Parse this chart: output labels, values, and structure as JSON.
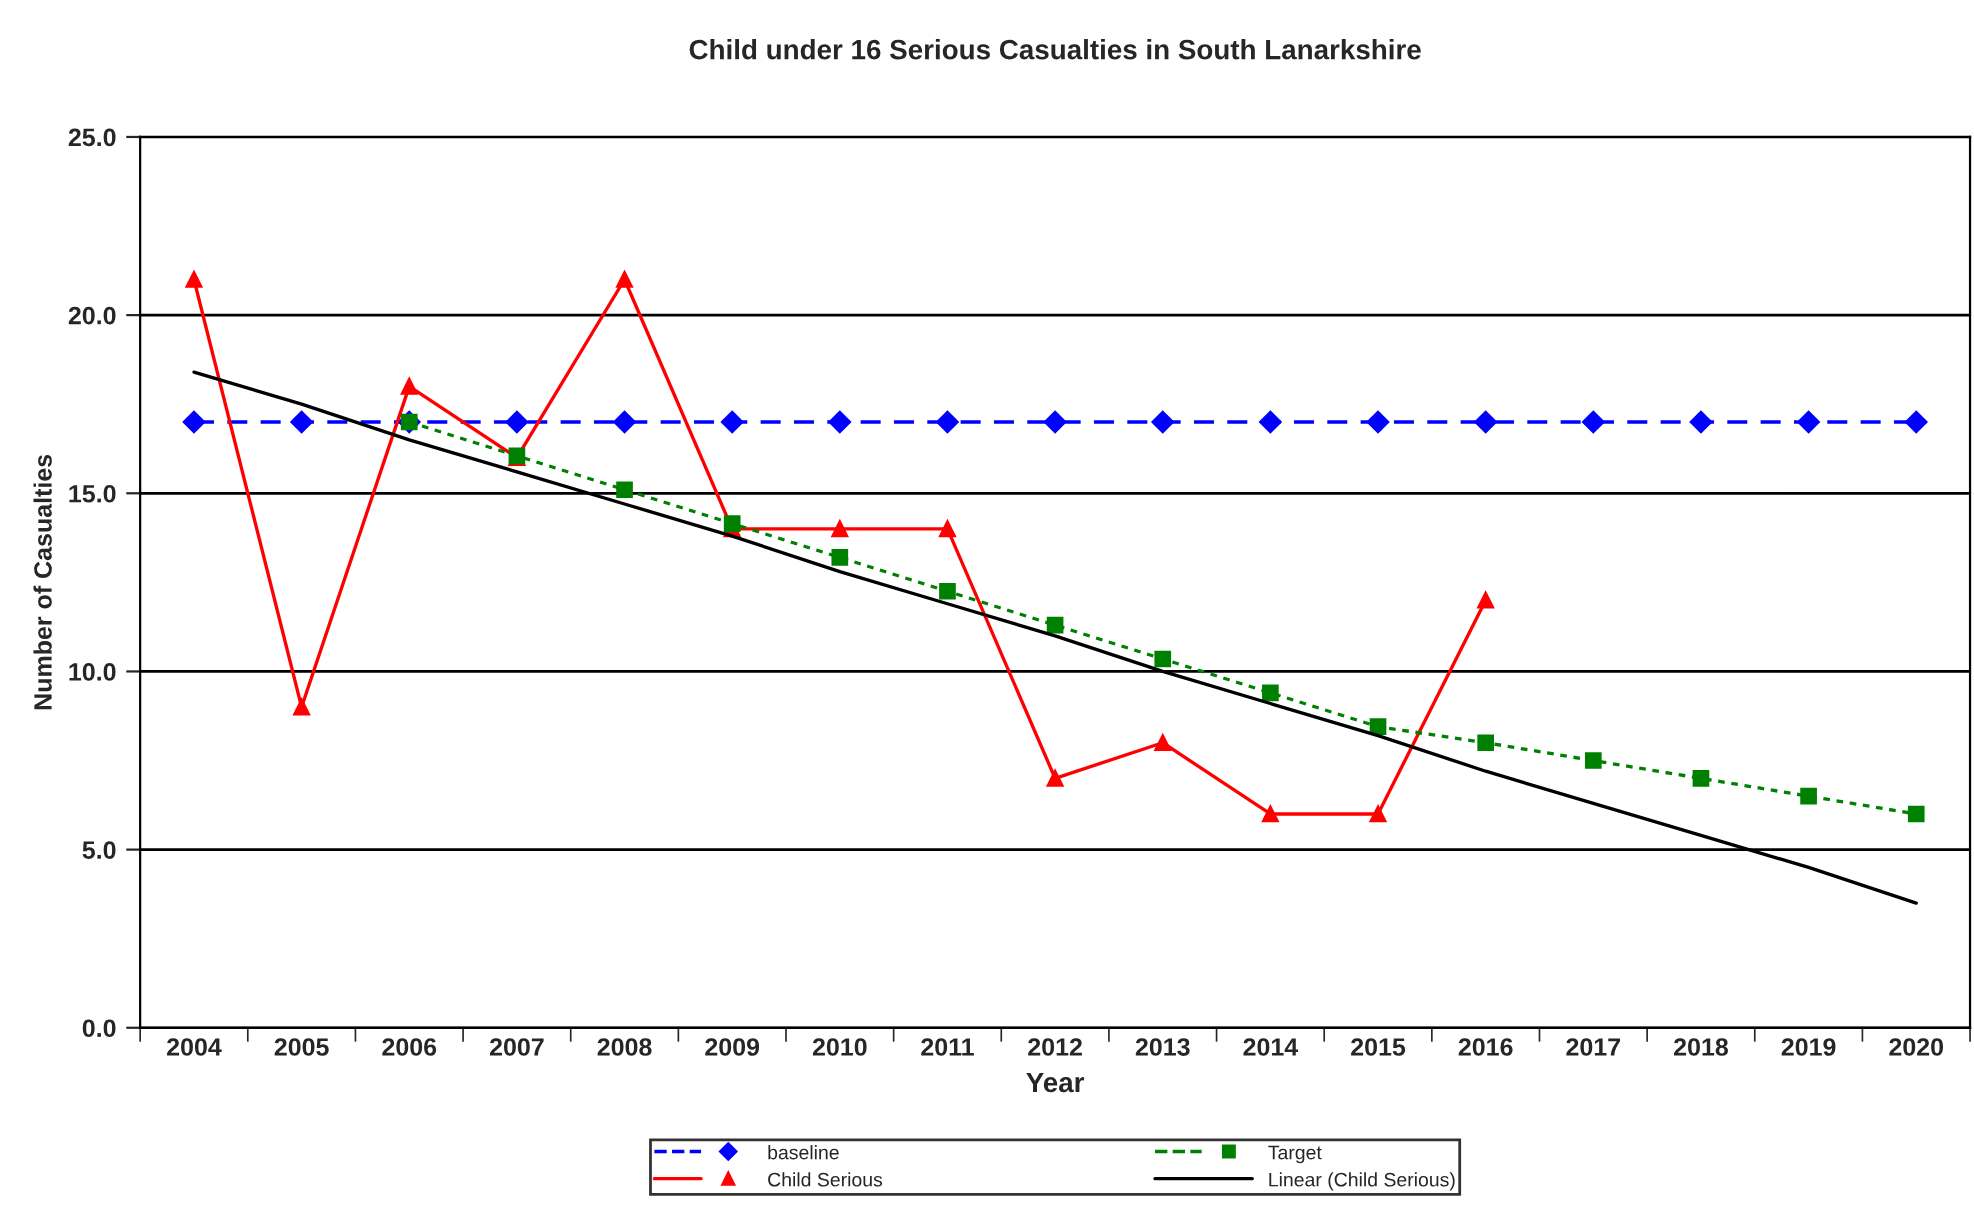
{
  "chart_data": {
    "type": "line",
    "title": "Child under 16 Serious Casualties in South Lanarkshire",
    "xlabel": "Year",
    "ylabel": "Number of Casualties",
    "categories": [
      "2004",
      "2005",
      "2006",
      "2007",
      "2008",
      "2009",
      "2010",
      "2011",
      "2012",
      "2013",
      "2014",
      "2015",
      "2016",
      "2017",
      "2018",
      "2019",
      "2020"
    ],
    "series": [
      {
        "name": "baseline",
        "color": "#0000ff",
        "marker": "diamond",
        "line_style": "dashed",
        "values": [
          17,
          17,
          17,
          17,
          17,
          17,
          17,
          17,
          17,
          17,
          17,
          17,
          17,
          17,
          17,
          17,
          17
        ]
      },
      {
        "name": "Child Serious",
        "color": "#ff0000",
        "marker": "triangle",
        "line_style": "solid",
        "values": [
          21,
          9,
          18,
          16,
          21,
          14,
          14,
          14,
          7,
          8,
          6,
          6,
          12,
          null,
          null,
          null,
          null
        ]
      },
      {
        "name": "Target",
        "color": "#008000",
        "marker": "square",
        "line_style": "dotted",
        "values": [
          null,
          null,
          17,
          16.05,
          15.1,
          14.15,
          13.2,
          12.25,
          11.3,
          10.35,
          9.4,
          8.45,
          8.0,
          7.5,
          7.0,
          6.5,
          6.0
        ]
      },
      {
        "name": "Linear (Child Serious)",
        "color": "#000000",
        "marker": "none",
        "line_style": "solid",
        "values": [
          18.4,
          17.5,
          16.5,
          15.6,
          14.7,
          13.8,
          12.8,
          11.9,
          11.0,
          10.0,
          9.1,
          8.2,
          7.2,
          6.3,
          5.4,
          4.5,
          3.5
        ]
      }
    ],
    "ylim": [
      0,
      25
    ],
    "yticks": [
      {
        "value": 0,
        "label": "0.0"
      },
      {
        "value": 5,
        "label": "5.0"
      },
      {
        "value": 10,
        "label": "10.0"
      },
      {
        "value": 15,
        "label": "15.0"
      },
      {
        "value": 20,
        "label": "20.0"
      },
      {
        "value": 25,
        "label": "25.0"
      }
    ],
    "grid": "y",
    "legend": "bottom"
  }
}
